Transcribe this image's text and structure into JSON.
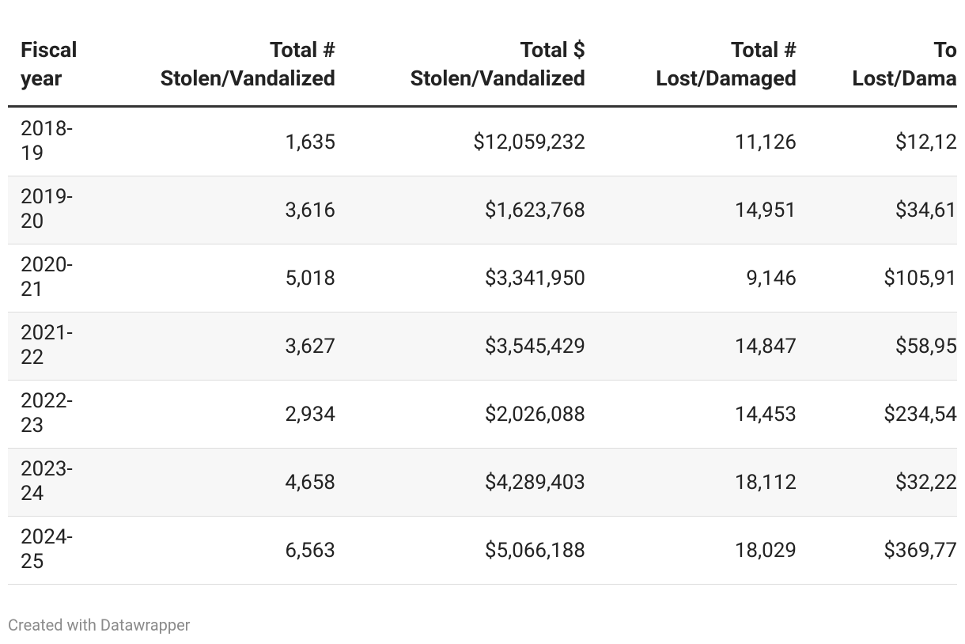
{
  "table": {
    "columns": [
      [
        "Fiscal",
        "year"
      ],
      [
        "Total #",
        "Stolen/Vandalized"
      ],
      [
        "Total $",
        "Stolen/Vandalized"
      ],
      [
        "Total #",
        "Lost/Damaged"
      ],
      [
        "To",
        "Lost/Dama"
      ]
    ],
    "rows": [
      [
        "2018-19",
        "1,635",
        "$12,059,232",
        "11,126",
        "$12,12"
      ],
      [
        "2019-20",
        "3,616",
        "$1,623,768",
        "14,951",
        "$34,61"
      ],
      [
        "2020-21",
        "5,018",
        "$3,341,950",
        "9,146",
        "$105,91"
      ],
      [
        "2021-22",
        "3,627",
        "$3,545,429",
        "14,847",
        "$58,95"
      ],
      [
        "2022-23",
        "2,934",
        "$2,026,088",
        "14,453",
        "$234,54"
      ],
      [
        "2023-24",
        "4,658",
        "$4,289,403",
        "18,112",
        "$32,22"
      ],
      [
        "2024-25",
        "6,563",
        "$5,066,188",
        "18,029",
        "$369,77"
      ]
    ]
  },
  "footer": {
    "credit": "Created with Datawrapper"
  }
}
